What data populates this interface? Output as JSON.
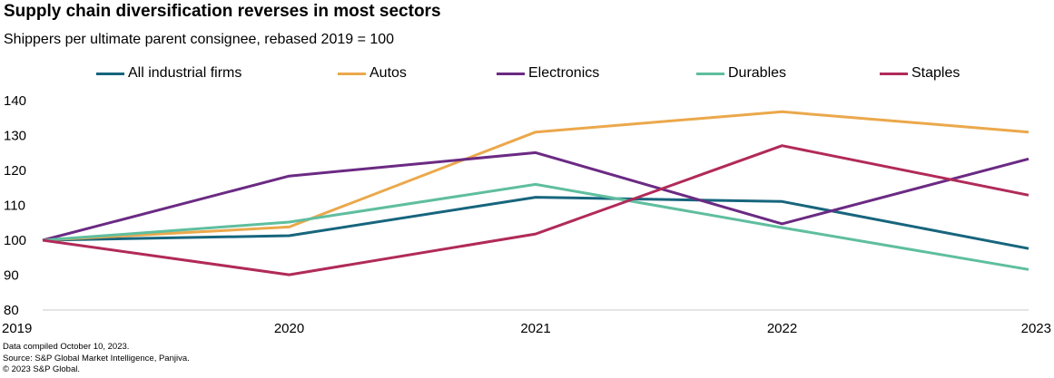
{
  "header": {
    "title": "Supply chain diversification reverses in most sectors",
    "subtitle": "Shippers per ultimate parent consignee, rebased 2019 = 100"
  },
  "footer": {
    "notes": [
      "Data compiled October 10, 2023.",
      "Source: S&P Global Market Intelligence, Panjiva.",
      "© 2023 S&P Global."
    ]
  },
  "chart_data": {
    "type": "line",
    "title": "Supply chain diversification reverses in most sectors",
    "subtitle": "Shippers per ultimate parent consignee, rebased 2019 = 100",
    "x": [
      "2019",
      "2020",
      "2021",
      "2022",
      "2023"
    ],
    "ylim": [
      80,
      140
    ],
    "yticks": [
      80,
      90,
      100,
      110,
      120,
      130,
      140
    ],
    "grid": false,
    "legend_position": "top",
    "series": [
      {
        "name": "All industrial firms",
        "color": "#17657d",
        "values": [
          100,
          101.3,
          112.3,
          111.1,
          97.6
        ]
      },
      {
        "name": "Autos",
        "color": "#eba84b",
        "values": [
          100,
          103.8,
          131.0,
          136.8,
          131.0
        ]
      },
      {
        "name": "Electronics",
        "color": "#6b2a83",
        "values": [
          100,
          118.4,
          125.1,
          104.7,
          123.3
        ]
      },
      {
        "name": "Durables",
        "color": "#5fbe9f",
        "values": [
          100,
          105.2,
          116.0,
          103.6,
          91.6
        ]
      },
      {
        "name": "Staples",
        "color": "#b12a59",
        "values": [
          100,
          90.1,
          101.8,
          127.1,
          112.9
        ]
      }
    ]
  }
}
